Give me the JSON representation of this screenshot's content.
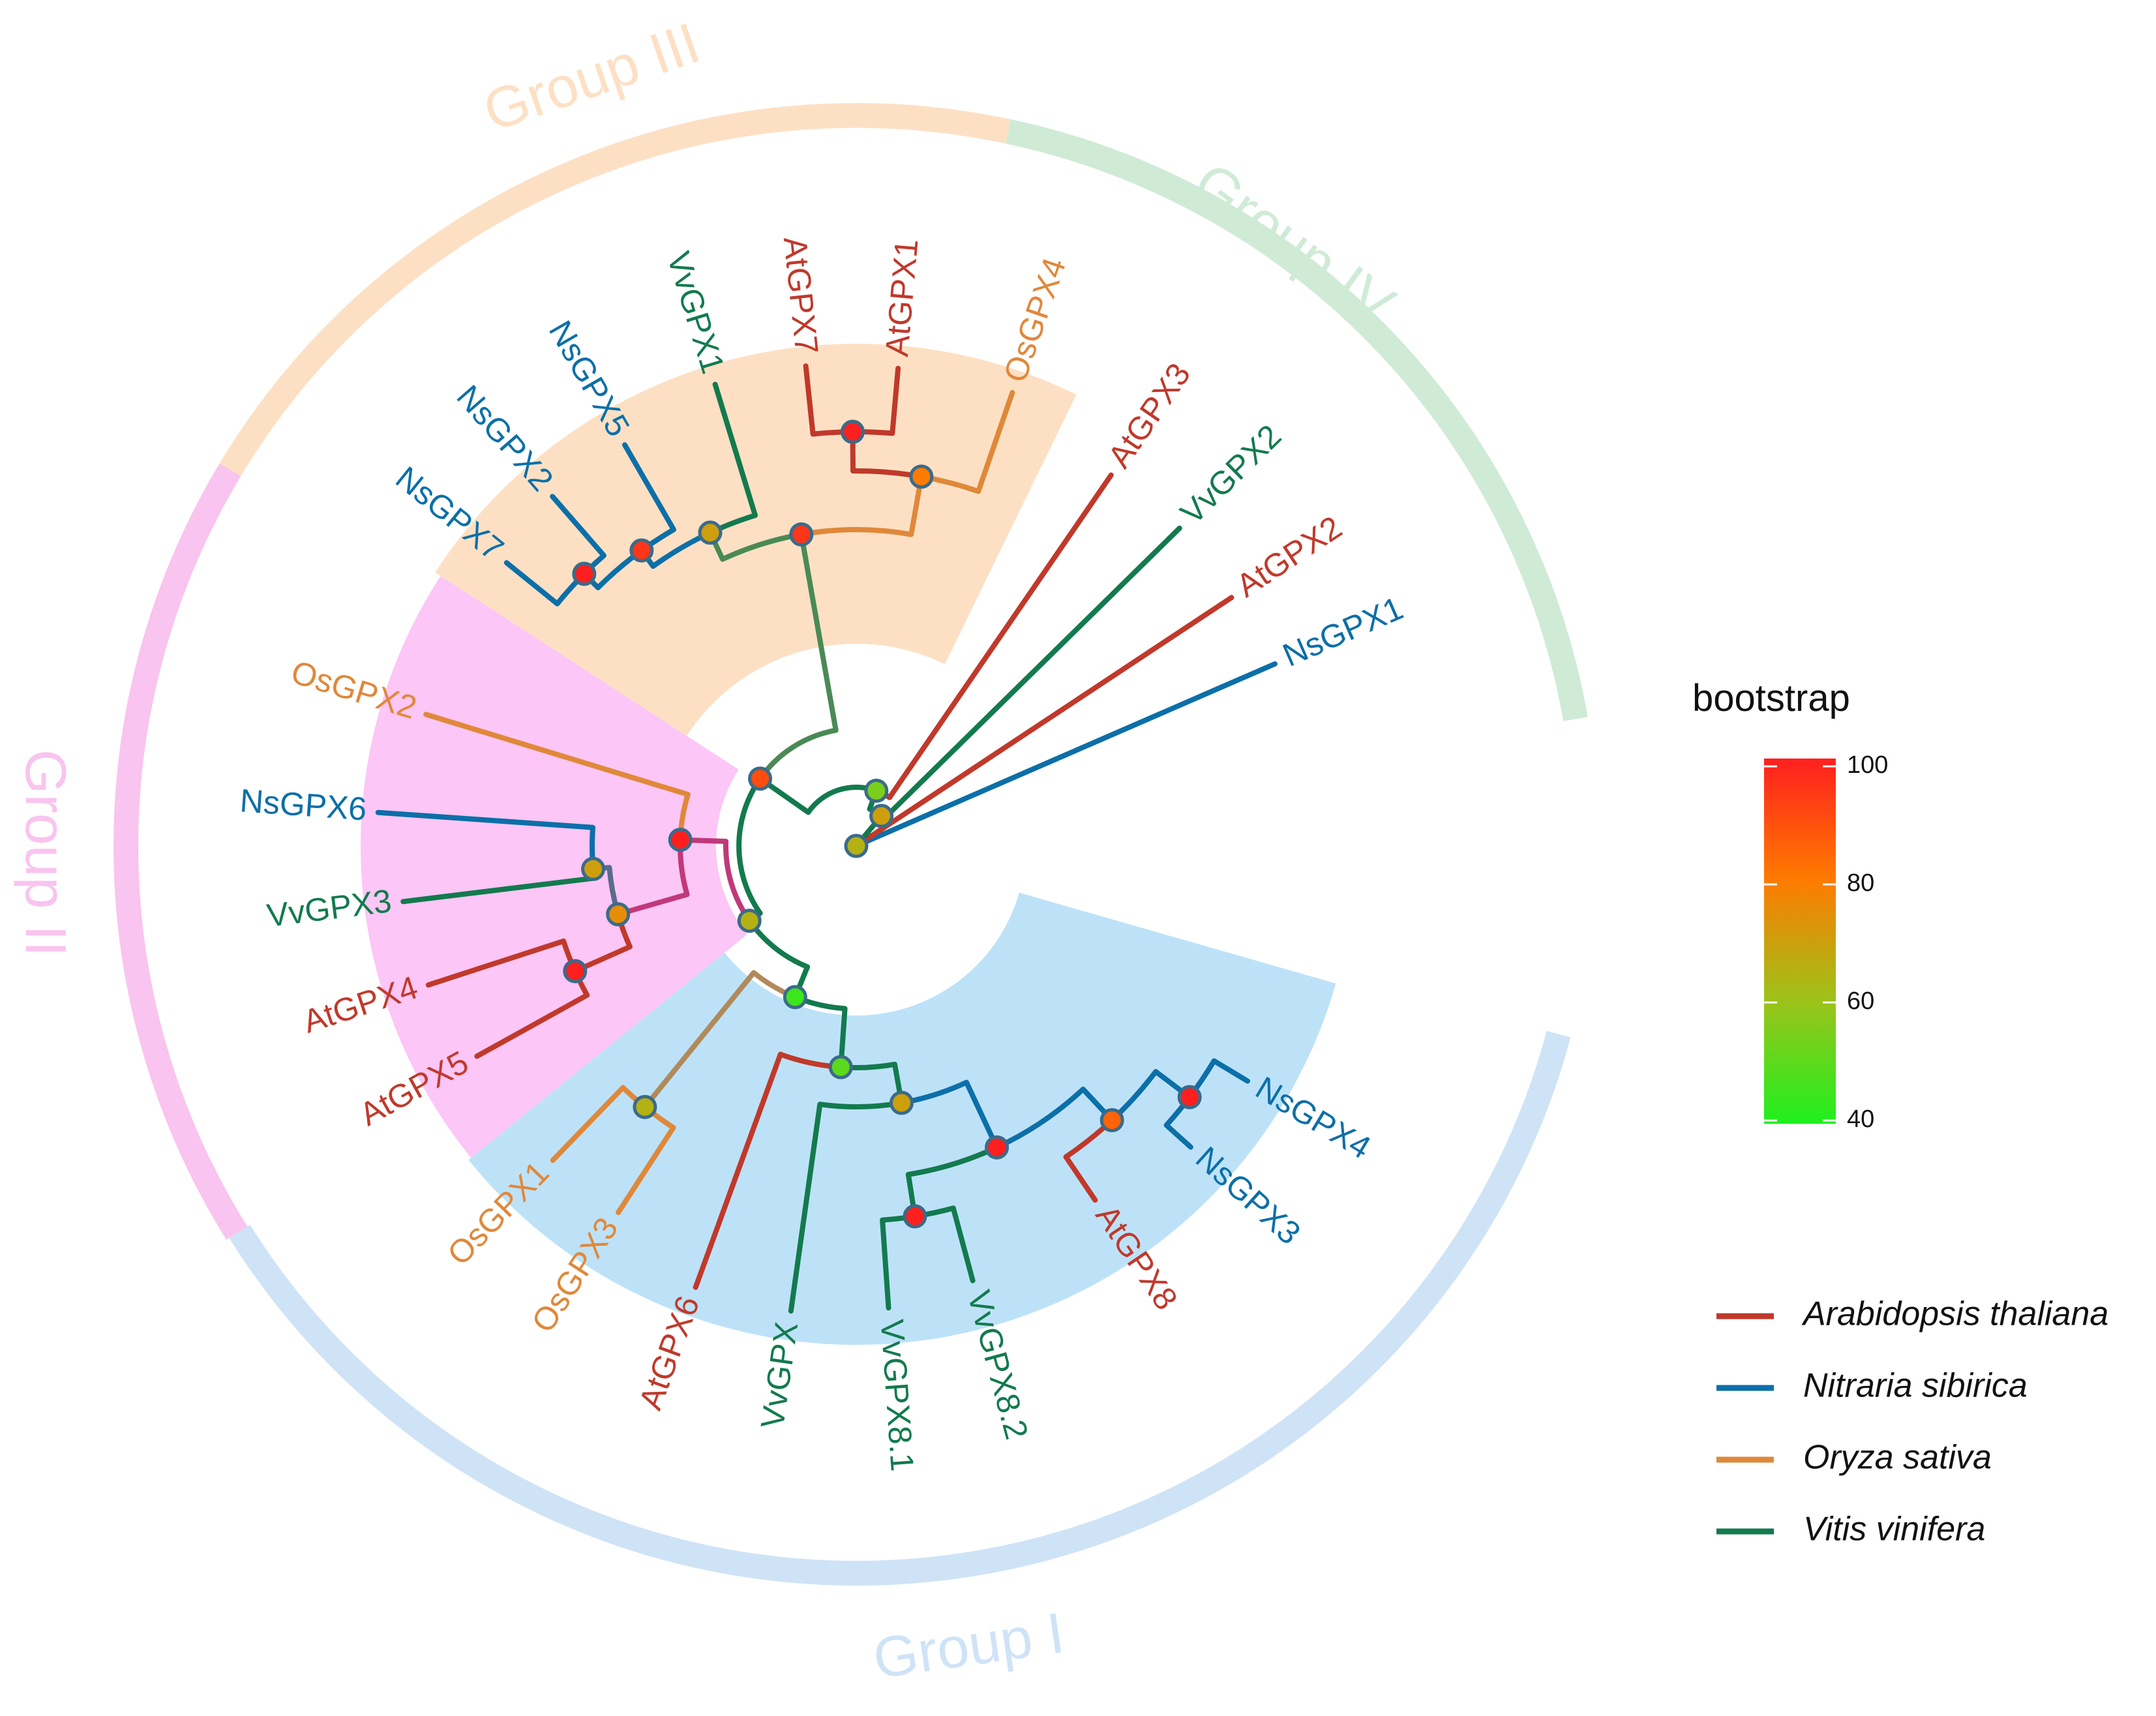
{
  "colors": {
    "arabidopsis": "#c0392b",
    "nitraria": "#0c6fa8",
    "oryza": "#e0883a",
    "vitis": "#137a4e",
    "group1": "#cfe3f7",
    "group2": "#f9c4ef",
    "group3": "#fde0c4",
    "group4": "#cfebd6",
    "sector1": "#bde2f8",
    "sector2": "#fcc6f6",
    "sector3": "#fde0c4"
  },
  "groups": [
    {
      "label": "Group I"
    },
    {
      "label": "Group II"
    },
    {
      "label": "Group III"
    },
    {
      "label": "Group IV"
    }
  ],
  "leaves": [
    {
      "label": "NsGPX1",
      "species": "nitraria"
    },
    {
      "label": "AtGPX2",
      "species": "arabidopsis"
    },
    {
      "label": "VvGPX2",
      "species": "vitis"
    },
    {
      "label": "AtGPX3",
      "species": "arabidopsis"
    },
    {
      "label": "OsGPX4",
      "species": "oryza"
    },
    {
      "label": "AtGPX1",
      "species": "arabidopsis"
    },
    {
      "label": "AtGPX7",
      "species": "arabidopsis"
    },
    {
      "label": "VvGPX1",
      "species": "vitis"
    },
    {
      "label": "NsGPX5",
      "species": "nitraria"
    },
    {
      "label": "NsGPX2",
      "species": "nitraria"
    },
    {
      "label": "NsGPX7",
      "species": "nitraria"
    },
    {
      "label": "OsGPX2",
      "species": "oryza"
    },
    {
      "label": "NsGPX6",
      "species": "nitraria"
    },
    {
      "label": "VvGPX3",
      "species": "vitis"
    },
    {
      "label": "AtGPX4",
      "species": "arabidopsis"
    },
    {
      "label": "AtGPX5",
      "species": "arabidopsis"
    },
    {
      "label": "OsGPX1",
      "species": "oryza"
    },
    {
      "label": "OsGPX3",
      "species": "oryza"
    },
    {
      "label": "AtGPX6",
      "species": "arabidopsis"
    },
    {
      "label": "VvGPX",
      "species": "vitis"
    },
    {
      "label": "VvGPX8.1",
      "species": "vitis"
    },
    {
      "label": "VvGPX8.2",
      "species": "vitis"
    },
    {
      "label": "AtGPX8",
      "species": "arabidopsis"
    },
    {
      "label": "NsGPX3",
      "species": "nitraria"
    },
    {
      "label": "NsGPX4",
      "species": "nitraria"
    }
  ],
  "legend": {
    "bootstrap_title": "bootstrap",
    "bootstrap_ticks": [
      "100",
      "80",
      "60",
      "40"
    ],
    "species": [
      {
        "key": "arabidopsis",
        "name": "Arabidopsis thaliana"
      },
      {
        "key": "nitraria",
        "name": "Nitraria sibirica"
      },
      {
        "key": "oryza",
        "name": "Oryza sativa"
      },
      {
        "key": "vitis",
        "name": "Vitis vinifera"
      }
    ]
  },
  "bootstrap": {
    "root": 65,
    "cladeIV_a": 70,
    "cladeIV_b": 55,
    "backbone": 90,
    "g3": 95,
    "g3_ns": 95,
    "g3_ns2": 100,
    "g3_vv": 70,
    "g3_at": 80,
    "g3_at17": 100,
    "g12": 65,
    "g2": 100,
    "g2_a": 70,
    "g2_b": 75,
    "g2_at45": 100,
    "g1": 45,
    "g1_os": 65,
    "g1_a": 50,
    "g1_b": 70,
    "g1_c": 100,
    "g1_vv8": 100,
    "g1_d": 85,
    "g1_ns34": 100
  }
}
